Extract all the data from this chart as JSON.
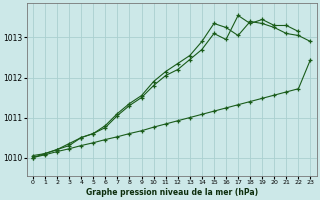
{
  "title": "Graphe pression niveau de la mer (hPa)",
  "background_color": "#cce8e8",
  "grid_color": "#aad0d0",
  "line_color": "#1a5c1a",
  "xlim": [
    -0.5,
    23.5
  ],
  "ylim": [
    1009.55,
    1013.85
  ],
  "yticks": [
    1010,
    1011,
    1012,
    1013
  ],
  "xticks": [
    0,
    1,
    2,
    3,
    4,
    5,
    6,
    7,
    8,
    9,
    10,
    11,
    12,
    13,
    14,
    15,
    16,
    17,
    18,
    19,
    20,
    21,
    22,
    23
  ],
  "line1_x": [
    0,
    1,
    2,
    3,
    4,
    5,
    6,
    7,
    8,
    9,
    10,
    11,
    12,
    13,
    14,
    15,
    16,
    17,
    18,
    19,
    20,
    21,
    22,
    23
  ],
  "line1_y": [
    1010.0,
    1010.07,
    1010.15,
    1010.22,
    1010.3,
    1010.37,
    1010.45,
    1010.52,
    1010.6,
    1010.67,
    1010.76,
    1010.84,
    1010.92,
    1011.0,
    1011.08,
    1011.16,
    1011.24,
    1011.32,
    1011.4,
    1011.48,
    1011.56,
    1011.64,
    1011.72,
    1012.45
  ],
  "line2_x": [
    0,
    1,
    2,
    3,
    4,
    5,
    6,
    7,
    8,
    9,
    10,
    11,
    12,
    13,
    14,
    15,
    16,
    17,
    18,
    19,
    20,
    21,
    22,
    23
  ],
  "line2_y": [
    1010.05,
    1010.1,
    1010.2,
    1010.35,
    1010.5,
    1010.6,
    1010.8,
    1011.1,
    1011.35,
    1011.55,
    1011.9,
    1012.15,
    1012.35,
    1012.55,
    1012.9,
    1013.35,
    1013.25,
    1013.05,
    1013.4,
    1013.35,
    1013.25,
    1013.1,
    1013.05,
    1012.9
  ],
  "line3_x": [
    0,
    1,
    2,
    3,
    4,
    5,
    6,
    7,
    8,
    9,
    10,
    11,
    12,
    13,
    14,
    15,
    16,
    17,
    18,
    19,
    20,
    21,
    22,
    23
  ],
  "line3_y": [
    1010.0,
    1010.1,
    1010.2,
    1010.3,
    1010.5,
    1010.6,
    1010.75,
    1011.05,
    1011.3,
    1011.5,
    1011.8,
    1012.05,
    1012.2,
    1012.45,
    1012.7,
    1013.1,
    1012.95,
    1013.55,
    1013.35,
    1013.45,
    1013.3,
    1013.3,
    1013.15,
    null
  ]
}
